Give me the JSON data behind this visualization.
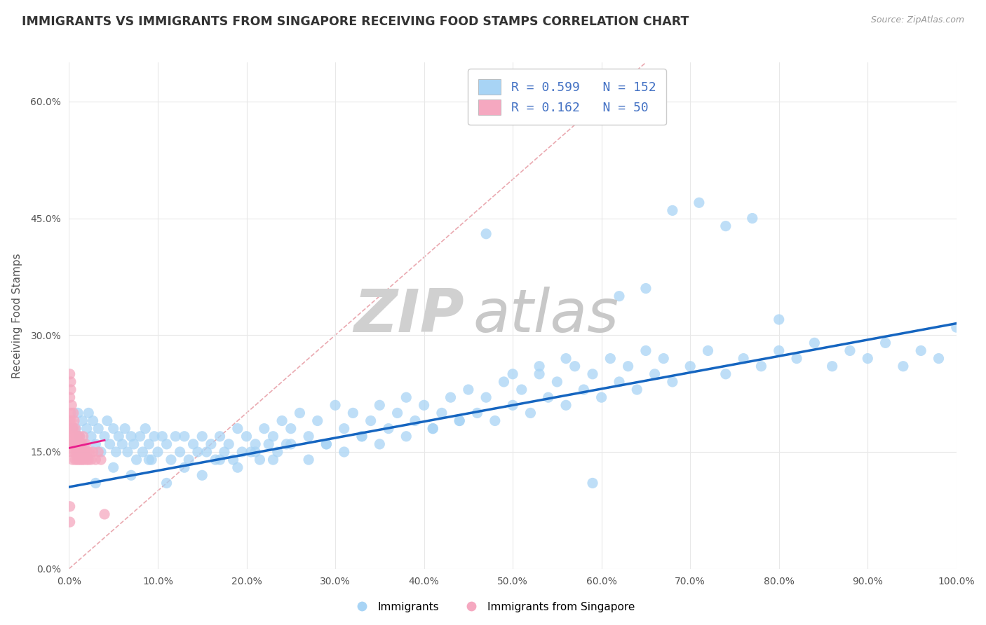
{
  "title": "IMMIGRANTS VS IMMIGRANTS FROM SINGAPORE RECEIVING FOOD STAMPS CORRELATION CHART",
  "source": "Source: ZipAtlas.com",
  "ylabel": "Receiving Food Stamps",
  "legend_blue_r": "0.599",
  "legend_blue_n": "152",
  "legend_pink_r": "0.162",
  "legend_pink_n": "50",
  "legend_blue_label": "Immigrants",
  "legend_pink_label": "Immigrants from Singapore",
  "xlim": [
    0.0,
    1.0
  ],
  "ylim": [
    0.0,
    0.65
  ],
  "xticks": [
    0.0,
    0.1,
    0.2,
    0.3,
    0.4,
    0.5,
    0.6,
    0.7,
    0.8,
    0.9,
    1.0
  ],
  "xticklabels": [
    "0.0%",
    "10.0%",
    "20.0%",
    "30.0%",
    "40.0%",
    "50.0%",
    "60.0%",
    "70.0%",
    "80.0%",
    "90.0%",
    "100.0%"
  ],
  "yticks": [
    0.0,
    0.15,
    0.3,
    0.45,
    0.6
  ],
  "yticklabels": [
    "0.0%",
    "15.0%",
    "30.0%",
    "45.0%",
    "60.0%"
  ],
  "blue_dot_color": "#A8D4F5",
  "pink_dot_color": "#F5A8C0",
  "blue_line_color": "#1565C0",
  "pink_line_color": "#E91E8C",
  "diagonal_color": "#E8A0A8",
  "grid_color": "#E8E8E8",
  "title_color": "#333333",
  "source_color": "#999999",
  "background_color": "#FFFFFF",
  "blue_x": [
    0.008,
    0.01,
    0.012,
    0.015,
    0.017,
    0.02,
    0.022,
    0.025,
    0.027,
    0.03,
    0.033,
    0.036,
    0.04,
    0.043,
    0.046,
    0.05,
    0.053,
    0.056,
    0.06,
    0.063,
    0.066,
    0.07,
    0.073,
    0.076,
    0.08,
    0.083,
    0.086,
    0.09,
    0.093,
    0.096,
    0.1,
    0.105,
    0.11,
    0.115,
    0.12,
    0.125,
    0.13,
    0.135,
    0.14,
    0.145,
    0.15,
    0.155,
    0.16,
    0.165,
    0.17,
    0.175,
    0.18,
    0.185,
    0.19,
    0.195,
    0.2,
    0.205,
    0.21,
    0.215,
    0.22,
    0.225,
    0.23,
    0.235,
    0.24,
    0.245,
    0.25,
    0.26,
    0.27,
    0.28,
    0.29,
    0.3,
    0.31,
    0.32,
    0.33,
    0.34,
    0.35,
    0.36,
    0.37,
    0.38,
    0.39,
    0.4,
    0.41,
    0.42,
    0.43,
    0.44,
    0.45,
    0.46,
    0.47,
    0.48,
    0.49,
    0.5,
    0.51,
    0.52,
    0.53,
    0.54,
    0.55,
    0.56,
    0.57,
    0.58,
    0.59,
    0.6,
    0.61,
    0.62,
    0.63,
    0.64,
    0.65,
    0.66,
    0.67,
    0.68,
    0.7,
    0.72,
    0.74,
    0.76,
    0.78,
    0.8,
    0.82,
    0.84,
    0.86,
    0.88,
    0.9,
    0.92,
    0.94,
    0.96,
    0.98,
    1.0,
    0.03,
    0.05,
    0.07,
    0.09,
    0.11,
    0.13,
    0.15,
    0.17,
    0.19,
    0.21,
    0.23,
    0.25,
    0.27,
    0.29,
    0.31,
    0.33,
    0.35,
    0.38,
    0.41,
    0.44,
    0.47,
    0.5,
    0.53,
    0.56,
    0.59,
    0.62,
    0.65,
    0.68,
    0.71,
    0.74,
    0.77,
    0.8
  ],
  "blue_y": [
    0.18,
    0.2,
    0.17,
    0.19,
    0.16,
    0.18,
    0.2,
    0.17,
    0.19,
    0.16,
    0.18,
    0.15,
    0.17,
    0.19,
    0.16,
    0.18,
    0.15,
    0.17,
    0.16,
    0.18,
    0.15,
    0.17,
    0.16,
    0.14,
    0.17,
    0.15,
    0.18,
    0.16,
    0.14,
    0.17,
    0.15,
    0.17,
    0.16,
    0.14,
    0.17,
    0.15,
    0.17,
    0.14,
    0.16,
    0.15,
    0.17,
    0.15,
    0.16,
    0.14,
    0.17,
    0.15,
    0.16,
    0.14,
    0.18,
    0.15,
    0.17,
    0.15,
    0.16,
    0.14,
    0.18,
    0.16,
    0.17,
    0.15,
    0.19,
    0.16,
    0.18,
    0.2,
    0.17,
    0.19,
    0.16,
    0.21,
    0.18,
    0.2,
    0.17,
    0.19,
    0.21,
    0.18,
    0.2,
    0.22,
    0.19,
    0.21,
    0.18,
    0.2,
    0.22,
    0.19,
    0.23,
    0.2,
    0.22,
    0.19,
    0.24,
    0.21,
    0.23,
    0.2,
    0.25,
    0.22,
    0.24,
    0.21,
    0.26,
    0.23,
    0.25,
    0.22,
    0.27,
    0.24,
    0.26,
    0.23,
    0.28,
    0.25,
    0.27,
    0.24,
    0.26,
    0.28,
    0.25,
    0.27,
    0.26,
    0.28,
    0.27,
    0.29,
    0.26,
    0.28,
    0.27,
    0.29,
    0.26,
    0.28,
    0.27,
    0.31,
    0.11,
    0.13,
    0.12,
    0.14,
    0.11,
    0.13,
    0.12,
    0.14,
    0.13,
    0.15,
    0.14,
    0.16,
    0.14,
    0.16,
    0.15,
    0.17,
    0.16,
    0.17,
    0.18,
    0.19,
    0.43,
    0.25,
    0.26,
    0.27,
    0.11,
    0.35,
    0.36,
    0.46,
    0.47,
    0.44,
    0.45,
    0.32
  ],
  "pink_x": [
    0.001,
    0.001,
    0.002,
    0.002,
    0.002,
    0.003,
    0.003,
    0.003,
    0.004,
    0.004,
    0.004,
    0.005,
    0.005,
    0.005,
    0.006,
    0.006,
    0.006,
    0.007,
    0.007,
    0.007,
    0.008,
    0.008,
    0.009,
    0.009,
    0.01,
    0.01,
    0.011,
    0.011,
    0.012,
    0.012,
    0.013,
    0.013,
    0.014,
    0.015,
    0.015,
    0.016,
    0.016,
    0.017,
    0.018,
    0.019,
    0.02,
    0.021,
    0.022,
    0.023,
    0.025,
    0.027,
    0.03,
    0.033,
    0.036,
    0.04
  ],
  "pink_y": [
    0.17,
    0.19,
    0.16,
    0.18,
    0.2,
    0.15,
    0.17,
    0.19,
    0.16,
    0.18,
    0.14,
    0.16,
    0.18,
    0.2,
    0.15,
    0.17,
    0.19,
    0.14,
    0.16,
    0.18,
    0.15,
    0.17,
    0.14,
    0.16,
    0.15,
    0.17,
    0.14,
    0.16,
    0.15,
    0.17,
    0.14,
    0.16,
    0.15,
    0.14,
    0.16,
    0.15,
    0.17,
    0.14,
    0.15,
    0.16,
    0.14,
    0.15,
    0.14,
    0.15,
    0.14,
    0.15,
    0.14,
    0.15,
    0.14,
    0.07
  ],
  "pink_outlier_x": [
    0.001,
    0.002,
    0.003,
    0.002,
    0.001,
    0.001,
    0.001
  ],
  "pink_outlier_y": [
    0.22,
    0.23,
    0.21,
    0.24,
    0.25,
    0.08,
    0.06
  ],
  "blue_line_x0": 0.0,
  "blue_line_x1": 1.0,
  "blue_line_y0": 0.105,
  "blue_line_y1": 0.315,
  "pink_line_x0": 0.0,
  "pink_line_x1": 0.04,
  "pink_line_y0": 0.155,
  "pink_line_y1": 0.165
}
